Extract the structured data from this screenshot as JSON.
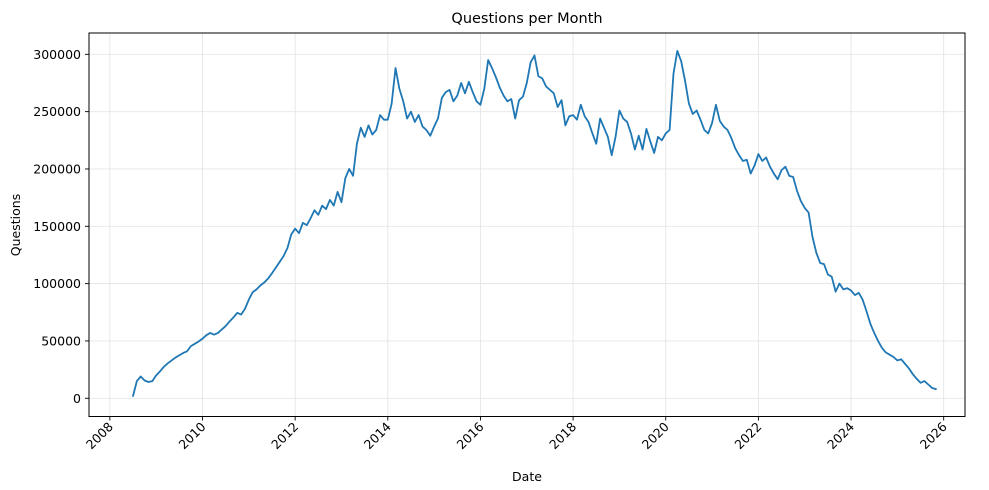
{
  "chart_data": {
    "type": "line",
    "title": "Questions per Month",
    "xlabel": "Date",
    "ylabel": "Questions",
    "grid": true,
    "legend": "none",
    "line_color": "#1f77b4",
    "line_width": 1.8,
    "background_color": "#ffffff",
    "grid_color": "#e5e5e5",
    "spine_color": "#000000",
    "x_tick_labels": [
      "2008",
      "2010",
      "2012",
      "2014",
      "2016",
      "2018",
      "2020",
      "2022",
      "2024",
      "2026"
    ],
    "x_tick_years": [
      2008,
      2010,
      2012,
      2014,
      2016,
      2018,
      2020,
      2022,
      2024,
      2026
    ],
    "x_tick_rotation_deg": 45,
    "y_tick_labels": [
      "0",
      "50000",
      "100000",
      "150000",
      "200000",
      "250000",
      "300000"
    ],
    "y_ticks": [
      0,
      50000,
      100000,
      150000,
      200000,
      250000,
      300000
    ],
    "xlim_decimal_years": [
      2007.55,
      2026.46
    ],
    "ylim": [
      -15900,
      318600
    ],
    "series": [
      {
        "name": "Questions",
        "start": "2008-07",
        "end": "2025-11",
        "frequency": "monthly",
        "values": [
          2000,
          15000,
          19000,
          15500,
          14200,
          15000,
          20000,
          23500,
          27500,
          30500,
          33000,
          35500,
          37500,
          39500,
          41000,
          45500,
          47500,
          49500,
          52000,
          55000,
          57000,
          55500,
          57000,
          60000,
          63000,
          67000,
          70500,
          74500,
          73000,
          78000,
          86000,
          92500,
          95000,
          98500,
          101000,
          104500,
          109000,
          114000,
          119000,
          124000,
          131000,
          143000,
          148000,
          144000,
          153000,
          151000,
          157000,
          164000,
          160000,
          168000,
          165000,
          173000,
          168000,
          180000,
          171000,
          192000,
          200000,
          194000,
          222000,
          236000,
          228000,
          238000,
          230000,
          234000,
          247000,
          243000,
          243000,
          257000,
          288000,
          270000,
          259000,
          244000,
          250000,
          241000,
          247000,
          237000,
          234000,
          229000,
          237000,
          244000,
          262000,
          267000,
          269000,
          259000,
          264000,
          275000,
          266000,
          276000,
          267000,
          259000,
          256000,
          270000,
          295000,
          288000,
          280000,
          271000,
          264000,
          259000,
          261000,
          244000,
          260000,
          263000,
          275000,
          293000,
          299000,
          281000,
          279000,
          272000,
          269000,
          266000,
          254000,
          260000,
          238000,
          246000,
          247000,
          243000,
          256000,
          246000,
          241000,
          231000,
          222000,
          244000,
          236000,
          228000,
          212000,
          228000,
          251000,
          244000,
          241000,
          231000,
          217000,
          229000,
          217000,
          235000,
          224000,
          214000,
          228000,
          225000,
          231000,
          234000,
          283000,
          303000,
          294000,
          277000,
          257000,
          248000,
          251000,
          243000,
          234000,
          231000,
          240000,
          256000,
          242000,
          237000,
          234000,
          227000,
          218000,
          212000,
          207000,
          208000,
          196000,
          203000,
          213000,
          207000,
          210000,
          202000,
          196000,
          191000,
          199000,
          202000,
          194000,
          193000,
          181000,
          172000,
          166000,
          162000,
          141000,
          127000,
          118000,
          117000,
          108000,
          106000,
          93000,
          100000,
          95000,
          96000,
          94000,
          90000,
          92000,
          86000,
          76000,
          65000,
          57000,
          50000,
          44000,
          40000,
          38000,
          36000,
          33000,
          34000,
          30000,
          26000,
          21000,
          17000,
          13500,
          15000,
          12000,
          9000,
          8000
        ]
      }
    ]
  }
}
